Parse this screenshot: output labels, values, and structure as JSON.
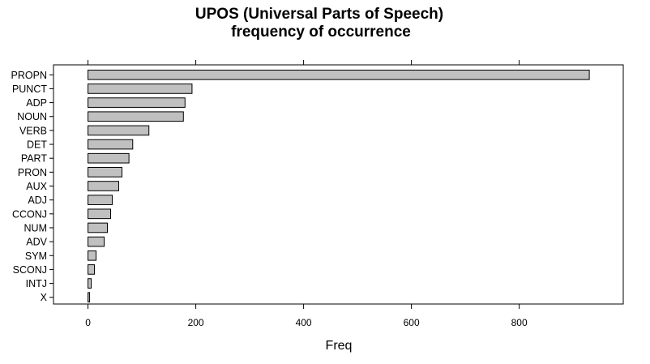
{
  "chart_data": {
    "type": "bar",
    "orientation": "horizontal",
    "title": [
      "UPOS (Universal Parts of Speech)",
      "frequency of occurrence"
    ],
    "xlabel": "Freq",
    "ylabel": "",
    "categories": [
      "PROPN",
      "PUNCT",
      "ADP",
      "NOUN",
      "VERB",
      "DET",
      "PART",
      "PRON",
      "AUX",
      "ADJ",
      "CCONJ",
      "NUM",
      "ADV",
      "SYM",
      "SCONJ",
      "INTJ",
      "X"
    ],
    "values": [
      930,
      193,
      180,
      177,
      113,
      83,
      76,
      63,
      57,
      45,
      42,
      36,
      30,
      15,
      12,
      6,
      3
    ],
    "xlim": [
      -64,
      993
    ],
    "xticks": [
      0,
      200,
      400,
      600,
      800
    ],
    "grid": false,
    "bar_color": "#c0c0c0",
    "bar_edge_color": "#000000"
  }
}
